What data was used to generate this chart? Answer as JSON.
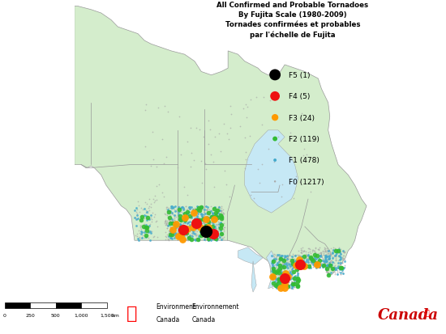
{
  "title_line1": "All Confirmed and Probable Tornadoes",
  "title_line2": "By Fujita Scale (1980-2009)",
  "title_line3": "Tornades confirmées et probables",
  "title_line4": "par l'échelle de Fujita",
  "legend_items": [
    {
      "label": "F5 (1)",
      "color": "#000000",
      "ms": 9
    },
    {
      "label": "F4 (5)",
      "color": "#ee1111",
      "ms": 8
    },
    {
      "label": "F3 (24)",
      "color": "#ff9900",
      "ms": 7
    },
    {
      "label": "F2 (119)",
      "color": "#33bb33",
      "ms": 6
    },
    {
      "label": "F1 (478)",
      "color": "#44aacc",
      "ms": 4
    },
    {
      "label": "F0 (1217)",
      "color": "#aaaaaa",
      "ms": 2
    }
  ],
  "map_bg": "#c6e8f5",
  "land_color": "#d4edcc",
  "border_color": "#999999",
  "fig_bg": "#ffffff",
  "footer_bg": "#f2f2f2",
  "xlim": [
    -141,
    -52
  ],
  "ylim": [
    41,
    84
  ]
}
